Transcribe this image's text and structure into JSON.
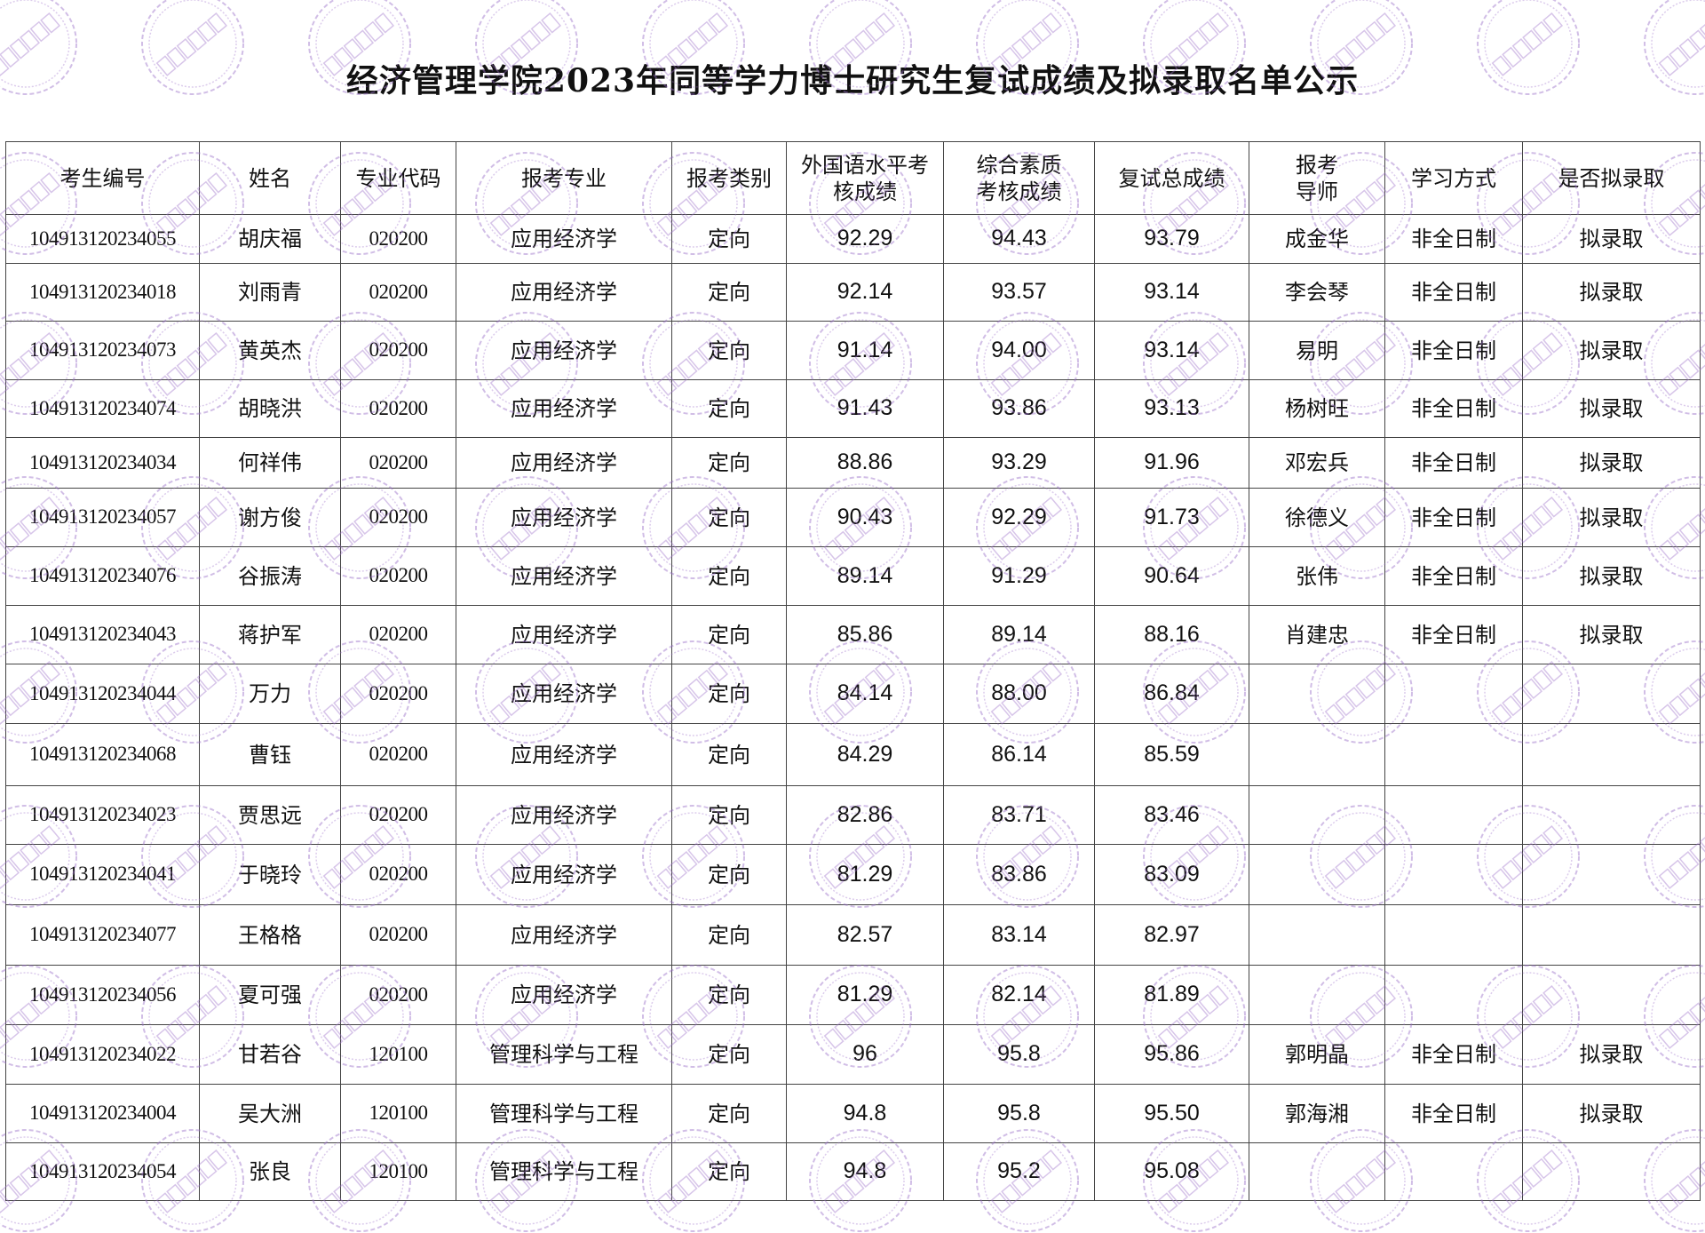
{
  "title": "经济管理学院2023年同等学力博士研究生复试成绩及拟录取名单公示",
  "watermark_text": "经济管理学院",
  "watermark_color": "#9a6ec8",
  "headers": [
    "考生编号",
    "姓名",
    "专业代码",
    "报考专业",
    "报考类别",
    "外国语水平考\n核成绩",
    "综合素质\n考核成绩",
    "复试总成绩",
    "报考\n导师",
    "学习方式",
    "是否拟录取"
  ],
  "rows": [
    [
      "104913120234055",
      "胡庆福",
      "020200",
      "应用经济学",
      "定向",
      "92.29",
      "94.43",
      "93.79",
      "成金华",
      "非全日制",
      "拟录取"
    ],
    [
      "104913120234018",
      "刘雨青",
      "020200",
      "应用经济学",
      "定向",
      "92.14",
      "93.57",
      "93.14",
      "李会琴",
      "非全日制",
      "拟录取"
    ],
    [
      "104913120234073",
      "黄英杰",
      "020200",
      "应用经济学",
      "定向",
      "91.14",
      "94.00",
      "93.14",
      "易明",
      "非全日制",
      "拟录取"
    ],
    [
      "104913120234074",
      "胡晓洪",
      "020200",
      "应用经济学",
      "定向",
      "91.43",
      "93.86",
      "93.13",
      "杨树旺",
      "非全日制",
      "拟录取"
    ],
    [
      "104913120234034",
      "何祥伟",
      "020200",
      "应用经济学",
      "定向",
      "88.86",
      "93.29",
      "91.96",
      "邓宏兵",
      "非全日制",
      "拟录取"
    ],
    [
      "104913120234057",
      "谢方俊",
      "020200",
      "应用经济学",
      "定向",
      "90.43",
      "92.29",
      "91.73",
      "徐德义",
      "非全日制",
      "拟录取"
    ],
    [
      "104913120234076",
      "谷振涛",
      "020200",
      "应用经济学",
      "定向",
      "89.14",
      "91.29",
      "90.64",
      "张伟",
      "非全日制",
      "拟录取"
    ],
    [
      "104913120234043",
      "蒋护军",
      "020200",
      "应用经济学",
      "定向",
      "85.86",
      "89.14",
      "88.16",
      "肖建忠",
      "非全日制",
      "拟录取"
    ],
    [
      "104913120234044",
      "万力",
      "020200",
      "应用经济学",
      "定向",
      "84.14",
      "88.00",
      "86.84",
      "",
      "",
      ""
    ],
    [
      "104913120234068",
      "曹钰",
      "020200",
      "应用经济学",
      "定向",
      "84.29",
      "86.14",
      "85.59",
      "",
      "",
      ""
    ],
    [
      "104913120234023",
      "贾思远",
      "020200",
      "应用经济学",
      "定向",
      "82.86",
      "83.71",
      "83.46",
      "",
      "",
      ""
    ],
    [
      "104913120234041",
      "于晓玲",
      "020200",
      "应用经济学",
      "定向",
      "81.29",
      "83.86",
      "83.09",
      "",
      "",
      ""
    ],
    [
      "104913120234077",
      "王格格",
      "020200",
      "应用经济学",
      "定向",
      "82.57",
      "83.14",
      "82.97",
      "",
      "",
      ""
    ],
    [
      "104913120234056",
      "夏可强",
      "020200",
      "应用经济学",
      "定向",
      "81.29",
      "82.14",
      "81.89",
      "",
      "",
      ""
    ],
    [
      "104913120234022",
      "甘若谷",
      "120100",
      "管理科学与工程",
      "定向",
      "96",
      "95.8",
      "95.86",
      "郭明晶",
      "非全日制",
      "拟录取"
    ],
    [
      "104913120234004",
      "吴大洲",
      "120100",
      "管理科学与工程",
      "定向",
      "94.8",
      "95.8",
      "95.50",
      "郭海湘",
      "非全日制",
      "拟录取"
    ],
    [
      "104913120234054",
      "张良",
      "120100",
      "管理科学与工程",
      "定向",
      "94.8",
      "95.2",
      "95.08",
      "",
      "",
      ""
    ]
  ]
}
